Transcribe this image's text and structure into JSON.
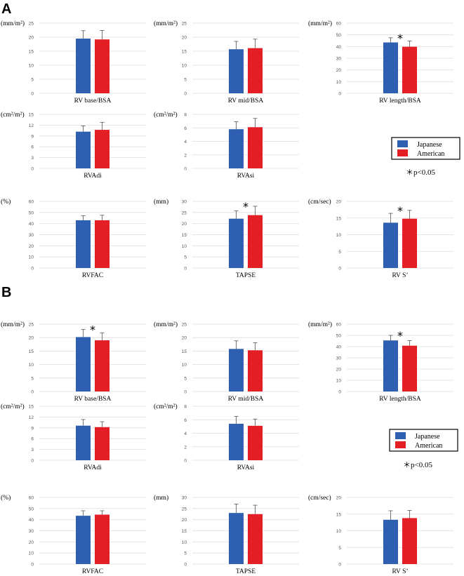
{
  "colors": {
    "japanese": "#2e5fb0",
    "american": "#e41e25",
    "grid": "#dedede",
    "error": "#555555"
  },
  "figure": {
    "panel_a_label": "A",
    "panel_b_label": "B",
    "legend": {
      "series": [
        "Japanese",
        "American"
      ],
      "significance": "＊p<0.05"
    }
  },
  "chart_data": [
    {
      "panel": "A",
      "title": "",
      "type": "bar",
      "xlabel": "RV base/BSA",
      "ylabel": "(mm/m²)",
      "ylim": [
        0,
        25
      ],
      "ticks": [
        0,
        5,
        10,
        15,
        20,
        25
      ],
      "categories": [
        "RV base/BSA"
      ],
      "series": [
        {
          "name": "Japanese",
          "values": [
            19.5
          ],
          "error": [
            2.8
          ]
        },
        {
          "name": "American",
          "values": [
            19.2
          ],
          "error": [
            3.2
          ]
        }
      ],
      "significant": false
    },
    {
      "panel": "A",
      "title": "",
      "type": "bar",
      "xlabel": "RV mid/BSA",
      "ylabel": "(mm/m²)",
      "ylim": [
        0,
        25
      ],
      "ticks": [
        0,
        5,
        10,
        15,
        20,
        25
      ],
      "categories": [
        "RV mid/BSA"
      ],
      "series": [
        {
          "name": "Japanese",
          "values": [
            15.7
          ],
          "error": [
            2.8
          ]
        },
        {
          "name": "American",
          "values": [
            16.1
          ],
          "error": [
            3.2
          ]
        }
      ],
      "significant": false
    },
    {
      "panel": "A",
      "title": "",
      "type": "bar",
      "xlabel": "RV length/BSA",
      "ylabel": "(mm/m²)",
      "ylim": [
        0,
        60
      ],
      "ticks": [
        0,
        10,
        20,
        30,
        40,
        50,
        60
      ],
      "categories": [
        "RV length/BSA"
      ],
      "series": [
        {
          "name": "Japanese",
          "values": [
            43.5
          ],
          "error": [
            4
          ]
        },
        {
          "name": "American",
          "values": [
            39.8
          ],
          "error": [
            5
          ]
        }
      ],
      "significant": true
    },
    {
      "panel": "A",
      "title": "",
      "type": "bar",
      "xlabel": "RVAdi",
      "ylabel": "(cm²/m²)",
      "ylim": [
        0,
        15
      ],
      "ticks": [
        0,
        3,
        6,
        9,
        12,
        15
      ],
      "categories": [
        "RVAdi"
      ],
      "series": [
        {
          "name": "Japanese",
          "values": [
            10.2
          ],
          "error": [
            1.6
          ]
        },
        {
          "name": "American",
          "values": [
            10.7
          ],
          "error": [
            2.1
          ]
        }
      ],
      "significant": false
    },
    {
      "panel": "A",
      "title": "",
      "type": "bar",
      "xlabel": "RVAsi",
      "ylabel": "(cm²/m²)",
      "ylim": [
        0,
        8
      ],
      "ticks": [
        0,
        2,
        4,
        6,
        8
      ],
      "categories": [
        "RVAsi"
      ],
      "series": [
        {
          "name": "Japanese",
          "values": [
            5.8
          ],
          "error": [
            1.1
          ]
        },
        {
          "name": "American",
          "values": [
            6.1
          ],
          "error": [
            1.3
          ]
        }
      ],
      "significant": false
    },
    {
      "panel": "A",
      "title": "",
      "type": "bar",
      "xlabel": "RVFAC",
      "ylabel": "(%)",
      "ylim": [
        0,
        60
      ],
      "ticks": [
        0,
        10,
        20,
        30,
        40,
        50,
        60
      ],
      "categories": [
        "RVFAC"
      ],
      "series": [
        {
          "name": "Japanese",
          "values": [
            43
          ],
          "error": [
            4
          ]
        },
        {
          "name": "American",
          "values": [
            43
          ],
          "error": [
            4.5
          ]
        }
      ],
      "significant": false
    },
    {
      "panel": "A",
      "title": "",
      "type": "bar",
      "xlabel": "TAPSE",
      "ylabel": "(mm)",
      "ylim": [
        0,
        30
      ],
      "ticks": [
        0,
        5,
        10,
        15,
        20,
        25,
        30
      ],
      "categories": [
        "TAPSE"
      ],
      "series": [
        {
          "name": "Japanese",
          "values": [
            22.2
          ],
          "error": [
            3.5
          ]
        },
        {
          "name": "American",
          "values": [
            23.8
          ],
          "error": [
            4
          ]
        }
      ],
      "significant": true
    },
    {
      "panel": "A",
      "title": "",
      "type": "bar",
      "xlabel": "RV S’",
      "ylabel": "(cm/sec)",
      "ylim": [
        0,
        20
      ],
      "ticks": [
        0,
        5,
        10,
        15,
        20
      ],
      "categories": [
        "RV S’"
      ],
      "series": [
        {
          "name": "Japanese",
          "values": [
            13.6
          ],
          "error": [
            2.8
          ]
        },
        {
          "name": "American",
          "values": [
            14.8
          ],
          "error": [
            2.5
          ]
        }
      ],
      "significant": true
    },
    {
      "panel": "B",
      "title": "",
      "type": "bar",
      "xlabel": "RV base/BSA",
      "ylabel": "(mm/m²)",
      "ylim": [
        0,
        25
      ],
      "ticks": [
        0,
        5,
        10,
        15,
        20,
        25
      ],
      "categories": [
        "RV base/BSA"
      ],
      "series": [
        {
          "name": "Japanese",
          "values": [
            20.2
          ],
          "error": [
            2.8
          ]
        },
        {
          "name": "American",
          "values": [
            19.0
          ],
          "error": [
            2.7
          ]
        }
      ],
      "significant": true
    },
    {
      "panel": "B",
      "title": "",
      "type": "bar",
      "xlabel": "RV mid/BSA",
      "ylabel": "(mm/m²)",
      "ylim": [
        0,
        25
      ],
      "ticks": [
        0,
        5,
        10,
        15,
        20,
        25
      ],
      "categories": [
        "RV mid/BSA"
      ],
      "series": [
        {
          "name": "Japanese",
          "values": [
            15.8
          ],
          "error": [
            3
          ]
        },
        {
          "name": "American",
          "values": [
            15.3
          ],
          "error": [
            2.8
          ]
        }
      ],
      "significant": false
    },
    {
      "panel": "B",
      "title": "",
      "type": "bar",
      "xlabel": "RV length/BSA",
      "ylabel": "(mm/m²)",
      "ylim": [
        0,
        60
      ],
      "ticks": [
        0,
        10,
        20,
        30,
        40,
        50,
        60
      ],
      "categories": [
        "RV length/BSA"
      ],
      "series": [
        {
          "name": "Japanese",
          "values": [
            45.5
          ],
          "error": [
            4.5
          ]
        },
        {
          "name": "American",
          "values": [
            40.8
          ],
          "error": [
            4.5
          ]
        }
      ],
      "significant": true
    },
    {
      "panel": "B",
      "title": "",
      "type": "bar",
      "xlabel": "RVAdi",
      "ylabel": "(cm²/m²)",
      "ylim": [
        0,
        15
      ],
      "ticks": [
        0,
        3,
        6,
        9,
        12,
        15
      ],
      "categories": [
        "RVAdi"
      ],
      "series": [
        {
          "name": "Japanese",
          "values": [
            9.6
          ],
          "error": [
            1.7
          ]
        },
        {
          "name": "American",
          "values": [
            9.2
          ],
          "error": [
            1.5
          ]
        }
      ],
      "significant": false
    },
    {
      "panel": "B",
      "title": "",
      "type": "bar",
      "xlabel": "RVAsi",
      "ylabel": "(cm²/m²)",
      "ylim": [
        0,
        8
      ],
      "ticks": [
        0,
        2,
        4,
        6,
        8
      ],
      "categories": [
        "RVAsi"
      ],
      "series": [
        {
          "name": "Japanese",
          "values": [
            5.4
          ],
          "error": [
            1.1
          ]
        },
        {
          "name": "American",
          "values": [
            5.1
          ],
          "error": [
            1.0
          ]
        }
      ],
      "significant": false
    },
    {
      "panel": "B",
      "title": "",
      "type": "bar",
      "xlabel": "RVFAC",
      "ylabel": "(%)",
      "ylim": [
        0,
        60
      ],
      "ticks": [
        0,
        10,
        20,
        30,
        40,
        50,
        60
      ],
      "categories": [
        "RVFAC"
      ],
      "series": [
        {
          "name": "Japanese",
          "values": [
            43.5
          ],
          "error": [
            4.5
          ]
        },
        {
          "name": "American",
          "values": [
            44.5
          ],
          "error": [
            3.5
          ]
        }
      ],
      "significant": false
    },
    {
      "panel": "B",
      "title": "",
      "type": "bar",
      "xlabel": "TAPSE",
      "ylabel": "(mm)",
      "ylim": [
        0,
        30
      ],
      "ticks": [
        0,
        5,
        10,
        15,
        20,
        25,
        30
      ],
      "categories": [
        "TAPSE"
      ],
      "series": [
        {
          "name": "Japanese",
          "values": [
            23.0
          ],
          "error": [
            4
          ]
        },
        {
          "name": "American",
          "values": [
            22.5
          ],
          "error": [
            4
          ]
        }
      ],
      "significant": false
    },
    {
      "panel": "B",
      "title": "",
      "type": "bar",
      "xlabel": "RV S’",
      "ylabel": "(cm/sec)",
      "ylim": [
        0,
        20
      ],
      "ticks": [
        0,
        5,
        10,
        15,
        20
      ],
      "categories": [
        "RV S’"
      ],
      "series": [
        {
          "name": "Japanese",
          "values": [
            13.3
          ],
          "error": [
            2.7
          ]
        },
        {
          "name": "American",
          "values": [
            13.8
          ],
          "error": [
            2.3
          ]
        }
      ],
      "significant": false
    }
  ]
}
